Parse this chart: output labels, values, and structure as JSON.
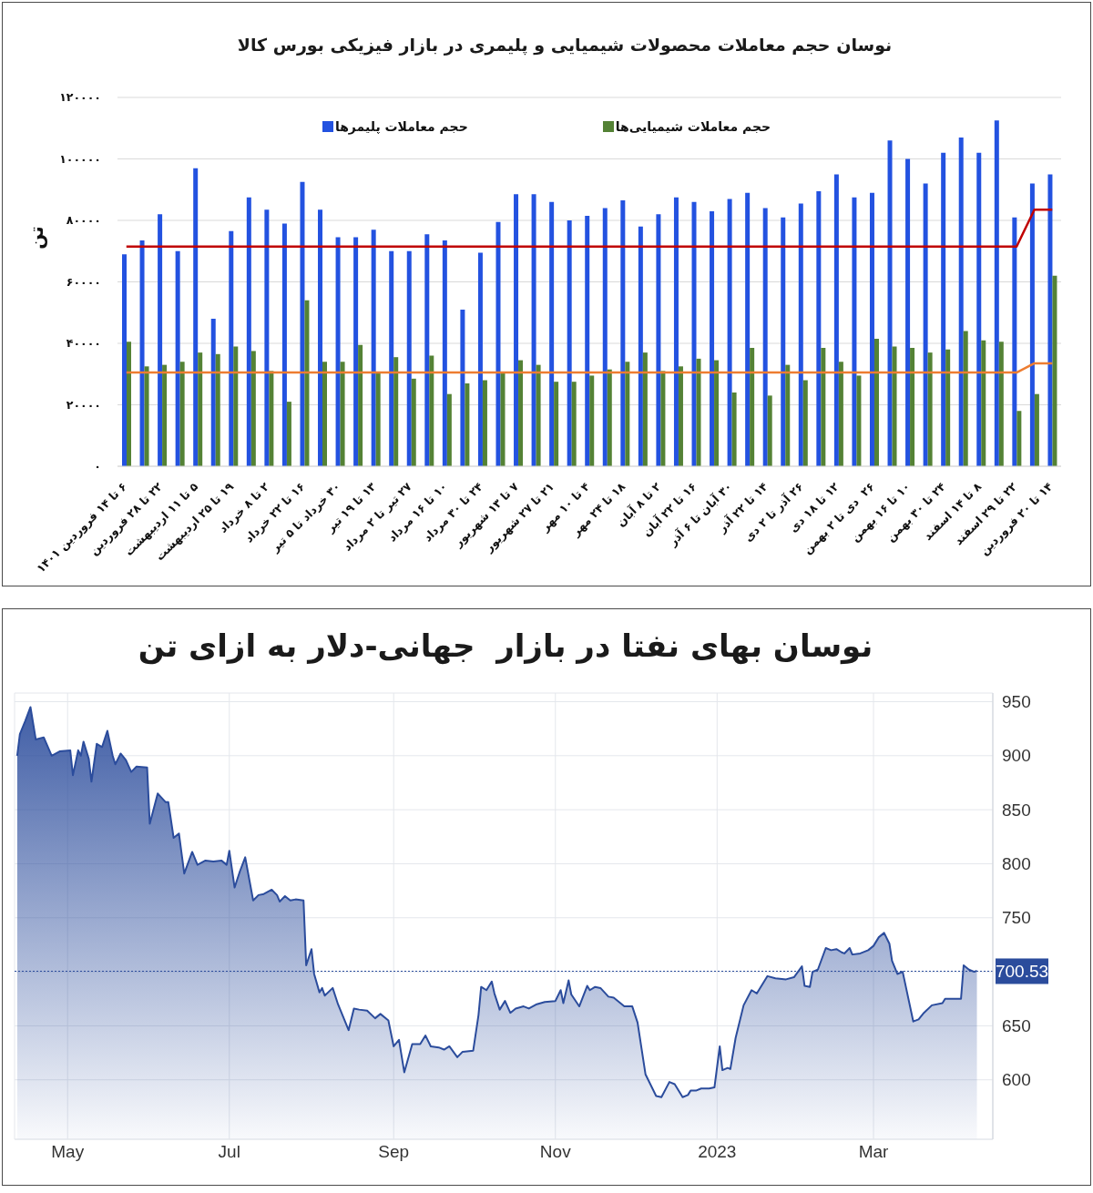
{
  "chart_data": [
    {
      "type": "bar",
      "title": "نوسان حجم معاملات محصولات شیمیایی و پلیمری در بازار فیزیکی بورس کالا",
      "ylabel": "تن",
      "categories": [
        "۶ تا ۱۴ فروردین ۱۴۰۱",
        null,
        "۲۲ تا ۲۸ فروردین",
        null,
        "۵ تا ۱۱ اردیبهشت",
        null,
        "۱۹ تا ۲۵ اردیبهشت",
        null,
        "۲ تا ۸ خرداد",
        null,
        "۱۶ تا ۲۲ خرداد",
        null,
        "۳۰ خرداد تا ۵ تیر",
        null,
        "۱۳ تا ۱۹ تیر",
        null,
        "۲۷ تیر تا ۲ مرداد",
        null,
        "۱۰ تا ۱۶ مرداد",
        null,
        "۲۴ تا ۳۰ مرداد",
        null,
        "۷ تا ۱۳ شهریور",
        null,
        "۲۱ تا ۲۷ شهریور",
        null,
        "۴ تا ۱۰ مهر",
        null,
        "۱۸ تا ۲۴ مهر",
        null,
        "۲ تا ۸ آبان",
        null,
        "۱۶ تا ۲۲ آبان",
        null,
        "۳۰ آبان تا ۶ آذر",
        null,
        "۱۴ تا ۲۲ آذر",
        null,
        "۲۶ آذر تا ۲ دی",
        null,
        "۱۲ تا ۱۸ دی",
        null,
        "۲۶  دی تا ۲ بهمن",
        null,
        "۱۰ تا ۱۶ بهمن",
        null,
        "۲۴ تا ۳۰ بهمن",
        null,
        "۸ تا ۱۴ اسفند",
        null,
        "۲۲ تا ۲۹ اسفند",
        null,
        "۱۴ تا ۲۰ فروردین"
      ],
      "series": [
        {
          "name": "حجم معاملات پلیمرها",
          "color": "#2352e0",
          "values": [
            69000,
            73500,
            82000,
            70000,
            97000,
            48000,
            76500,
            87500,
            83500,
            79000,
            92500,
            83500,
            74500,
            74500,
            77000,
            70000,
            70000,
            75500,
            73500,
            51000,
            69500,
            79500,
            88500,
            88500,
            86000,
            80000,
            81500,
            84000,
            86500,
            78000,
            82000,
            87500,
            86000,
            83000,
            87000,
            89000,
            84000,
            81000,
            85500,
            89500,
            95000,
            87500,
            89000,
            106000,
            100000,
            92000,
            102000,
            107000,
            102000,
            112500,
            81000,
            92000,
            95000
          ]
        },
        {
          "name": "حجم معاملات شیمیایی‌ها",
          "color": "#548235",
          "values": [
            40500,
            32500,
            33000,
            34000,
            37000,
            36500,
            39000,
            37500,
            31000,
            21000,
            54000,
            34000,
            34000,
            39500,
            30500,
            35500,
            28500,
            36000,
            23500,
            27000,
            28000,
            30500,
            34500,
            33000,
            27500,
            27500,
            29500,
            31500,
            34000,
            37000,
            31000,
            32500,
            35000,
            34500,
            24000,
            38500,
            23000,
            33000,
            28000,
            38500,
            34000,
            29500,
            41500,
            39000,
            38500,
            37000,
            38000,
            44000,
            41000,
            40500,
            18000,
            23500,
            62000
          ]
        },
        {
          "type": "line",
          "color": "#c00000",
          "values": [
            71500,
            71500,
            71500,
            71500,
            71500,
            71500,
            71500,
            71500,
            71500,
            71500,
            71500,
            71500,
            71500,
            71500,
            71500,
            71500,
            71500,
            71500,
            71500,
            71500,
            71500,
            71500,
            71500,
            71500,
            71500,
            71500,
            71500,
            71500,
            71500,
            71500,
            71500,
            71500,
            71500,
            71500,
            71500,
            71500,
            71500,
            71500,
            71500,
            71500,
            71500,
            71500,
            71500,
            71500,
            71500,
            71500,
            71500,
            71500,
            71500,
            71500,
            71500,
            83500,
            83500
          ]
        },
        {
          "type": "line",
          "color": "#ed7d31",
          "values": [
            30500,
            30500,
            30500,
            30500,
            30500,
            30500,
            30500,
            30500,
            30500,
            30500,
            30500,
            30500,
            30500,
            30500,
            30500,
            30500,
            30500,
            30500,
            30500,
            30500,
            30500,
            30500,
            30500,
            30500,
            30500,
            30500,
            30500,
            30500,
            30500,
            30500,
            30500,
            30500,
            30500,
            30500,
            30500,
            30500,
            30500,
            30500,
            30500,
            30500,
            30500,
            30500,
            30500,
            30500,
            30500,
            30500,
            30500,
            30500,
            30500,
            30500,
            30500,
            33500,
            33500
          ]
        }
      ],
      "ylim": [
        0,
        120000
      ],
      "yticks": [
        {
          "value": 0,
          "label": "۰"
        },
        {
          "value": 20000,
          "label": "۲۰۰۰۰"
        },
        {
          "value": 40000,
          "label": "۴۰۰۰۰"
        },
        {
          "value": 60000,
          "label": "۶۰۰۰۰"
        },
        {
          "value": 80000,
          "label": "۸۰۰۰۰"
        },
        {
          "value": 100000,
          "label": "۱۰۰۰۰۰"
        },
        {
          "value": 120000,
          "label": "۱۲۰۰۰۰"
        }
      ],
      "grid": "y",
      "legend": "top"
    },
    {
      "type": "area",
      "title": "نوسان بهای نفتا در بازار  جهانی-دلار به ازای تن",
      "x": [
        "2022-04-12",
        "2022-04-13",
        "2022-04-15",
        "2022-04-17",
        "2022-04-19",
        "2022-04-22",
        "2022-04-25",
        "2022-04-28",
        "2022-05-02",
        "2022-05-03",
        "2022-05-05",
        "2022-05-06",
        "2022-05-07",
        "2022-05-09",
        "2022-05-10",
        "2022-05-12",
        "2022-05-14",
        "2022-05-16",
        "2022-05-18",
        "2022-05-19",
        "2022-05-21",
        "2022-05-23",
        "2022-05-25",
        "2022-05-27",
        "2022-05-31",
        "2022-06-01",
        "2022-06-04",
        "2022-06-07",
        "2022-06-08",
        "2022-06-10",
        "2022-06-12",
        "2022-06-14",
        "2022-06-17",
        "2022-06-19",
        "2022-06-22",
        "2022-06-25",
        "2022-06-28",
        "2022-06-30",
        "2022-07-01",
        "2022-07-03",
        "2022-07-05",
        "2022-07-07",
        "2022-07-10",
        "2022-07-12",
        "2022-07-14",
        "2022-07-17",
        "2022-07-19",
        "2022-07-20",
        "2022-07-22",
        "2022-07-24",
        "2022-07-26",
        "2022-07-29",
        "2022-07-30",
        "2022-08-01",
        "2022-08-02",
        "2022-08-04",
        "2022-08-05",
        "2022-08-06",
        "2022-08-09",
        "2022-08-11",
        "2022-08-15",
        "2022-08-17",
        "2022-08-19",
        "2022-08-22",
        "2022-08-25",
        "2022-08-27",
        "2022-08-30",
        "2022-09-01",
        "2022-09-03",
        "2022-09-05",
        "2022-09-08",
        "2022-09-11",
        "2022-09-13",
        "2022-09-15",
        "2022-09-18",
        "2022-09-20",
        "2022-09-22",
        "2022-09-25",
        "2022-09-27",
        "2022-10-01",
        "2022-10-03",
        "2022-10-04",
        "2022-10-06",
        "2022-10-08",
        "2022-10-09",
        "2022-10-11",
        "2022-10-13",
        "2022-10-15",
        "2022-10-17",
        "2022-10-20",
        "2022-10-22",
        "2022-10-25",
        "2022-10-28",
        "2022-11-01",
        "2022-11-03",
        "2022-11-04",
        "2022-11-06",
        "2022-11-07",
        "2022-11-10",
        "2022-11-13",
        "2022-11-14",
        "2022-11-16",
        "2022-11-18",
        "2022-11-21",
        "2022-11-23",
        "2022-11-27",
        "2022-11-30",
        "2022-12-02",
        "2022-12-05",
        "2022-12-09",
        "2022-12-11",
        "2022-12-14",
        "2022-12-16",
        "2022-12-19",
        "2022-12-21",
        "2022-12-22",
        "2022-12-24",
        "2022-12-26",
        "2022-12-29",
        "2022-12-31",
        "2023-01-02",
        "2023-01-03",
        "2023-01-05",
        "2023-01-06",
        "2023-01-08",
        "2023-01-11",
        "2023-01-14",
        "2023-01-16",
        "2023-01-17",
        "2023-01-20",
        "2023-01-23",
        "2023-01-27",
        "2023-01-30",
        "2023-02-02",
        "2023-02-03",
        "2023-02-05",
        "2023-02-06",
        "2023-02-08",
        "2023-02-11",
        "2023-02-13",
        "2023-02-15",
        "2023-02-17",
        "2023-02-18",
        "2023-02-20",
        "2023-02-21",
        "2023-02-24",
        "2023-02-27",
        "2023-03-01",
        "2023-03-03",
        "2023-03-05",
        "2023-03-07",
        "2023-03-08",
        "2023-03-10",
        "2023-03-12",
        "2023-03-16",
        "2023-03-18",
        "2023-03-20",
        "2023-03-23",
        "2023-03-27",
        "2023-03-28",
        "2023-03-31",
        "2023-04-03",
        "2023-04-04",
        "2023-04-06",
        "2023-04-08",
        "2023-04-09"
      ],
      "series": [
        {
          "color": "#2b4c9c",
          "values": [
            900,
            920,
            932,
            945,
            915,
            917,
            900,
            904,
            905,
            882,
            905,
            900,
            913,
            897,
            876,
            911,
            908,
            923,
            900,
            892,
            902,
            896,
            885,
            890,
            889,
            837,
            865,
            857,
            857,
            824,
            828,
            791,
            811,
            799,
            803,
            802,
            803,
            799,
            812,
            778,
            793,
            806,
            766,
            771,
            772,
            776,
            771,
            765,
            770,
            766,
            767,
            766,
            706,
            721,
            698,
            681,
            685,
            678,
            685,
            670,
            646,
            666,
            665,
            664,
            657,
            661,
            655,
            631,
            637,
            607,
            633,
            633,
            641,
            631,
            630,
            628,
            631,
            621,
            626,
            627,
            660,
            686,
            683,
            691,
            680,
            665,
            673,
            662,
            666,
            668,
            666,
            670,
            672,
            673,
            683,
            671,
            692,
            679,
            668,
            687,
            683,
            686,
            685,
            677,
            676,
            668,
            668,
            653,
            605,
            585,
            584,
            598,
            596,
            584,
            586,
            590,
            590,
            592,
            592,
            593,
            631,
            609,
            611,
            610,
            639,
            669,
            683,
            680,
            684,
            696,
            694,
            693,
            695,
            705,
            687,
            686,
            700,
            702,
            722,
            720,
            721,
            718,
            717,
            722,
            716,
            717,
            720,
            724,
            732,
            736,
            726,
            710,
            698,
            700,
            654,
            656,
            662,
            669,
            671,
            675,
            675,
            675,
            706,
            702,
            700,
            701
          ]
        }
      ],
      "xlim": [
        "2022-04-11",
        "2023-04-15"
      ],
      "xticks": [
        {
          "value": "2022-05-01",
          "label": "May"
        },
        {
          "value": "2022-07-01",
          "label": "Jul"
        },
        {
          "value": "2022-09-01",
          "label": "Sep"
        },
        {
          "value": "2022-11-01",
          "label": "Nov"
        },
        {
          "value": "2023-01-01",
          "label": "2023"
        },
        {
          "value": "2023-03-01",
          "label": "Mar"
        }
      ],
      "ylim": [
        545,
        958
      ],
      "yticks": [
        600,
        650,
        {
          "value": 700,
          "label": null
        },
        750,
        800,
        850,
        900,
        950
      ],
      "ref_lines": [
        {
          "axis": "y",
          "value": 700.53,
          "label": "700.53",
          "color": "#2b4c9c",
          "line_style": "dotted"
        }
      ],
      "grid": true
    }
  ]
}
